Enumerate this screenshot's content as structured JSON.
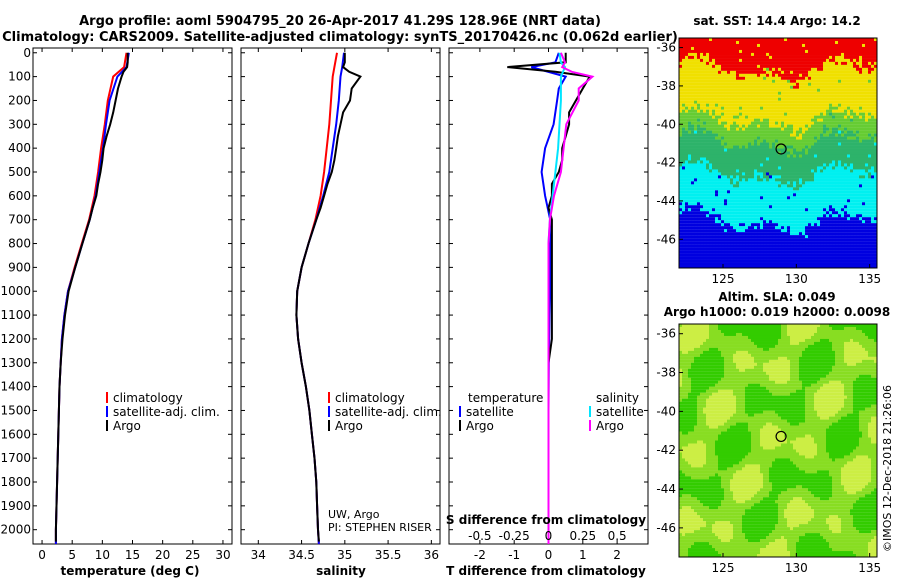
{
  "title_line1": "Argo profile: aoml 5904795_20 26-Apr-2017 41.29S 128.96E (NRT data)",
  "title_line2": "Climatology: CARS2009. Satellite-adjusted climatology: synTS_20170426.nc (0.062d earlier)",
  "colors": {
    "climatology": "#ff0000",
    "satellite": "#0000ff",
    "argo": "#000000",
    "sat_salinity": "#00e5ff",
    "argo_salinity": "#ff00ff"
  },
  "depth_axis": {
    "ticks": [
      0,
      100,
      200,
      300,
      400,
      500,
      600,
      700,
      800,
      900,
      1000,
      1100,
      1200,
      1300,
      1400,
      1500,
      1600,
      1700,
      1800,
      1900,
      2000
    ],
    "range": [
      -20,
      2060
    ]
  },
  "credit": {
    "line1": "UW, Argo",
    "line2": "PI: STEPHEN RISER"
  },
  "watermark": "©IMOS 12-Dec-2018 21:26:06",
  "chart_data": [
    {
      "type": "line",
      "name": "temperature",
      "xlabel": "temperature (deg C)",
      "xlim": [
        -1.5,
        31.5
      ],
      "xticks": [
        0,
        5,
        10,
        15,
        20,
        25,
        30
      ],
      "legend": {
        "placement": "lower-center",
        "entries": [
          "climatology",
          "satellite-adj. clim.",
          "Argo"
        ]
      },
      "series": [
        {
          "name": "climatology",
          "color": "#ff0000",
          "depth": [
            0,
            60,
            100,
            200,
            300,
            400,
            500,
            600,
            700,
            800,
            900,
            1000,
            1100,
            1200,
            1300,
            1400,
            1500,
            1600,
            1700,
            1800,
            1900,
            2000,
            2060
          ],
          "values": [
            14.0,
            13.6,
            11.8,
            10.9,
            10.4,
            9.8,
            9.3,
            8.7,
            7.8,
            6.6,
            5.4,
            4.3,
            3.7,
            3.3,
            3.1,
            2.9,
            2.8,
            2.7,
            2.6,
            2.5,
            2.4,
            2.3,
            2.3
          ]
        },
        {
          "name": "satellite-adj. clim.",
          "color": "#0000ff",
          "depth": [
            0,
            60,
            100,
            200,
            300,
            400,
            500,
            600,
            700,
            800,
            900,
            1000,
            1100,
            1200,
            1300,
            1400,
            1500,
            1600,
            1700,
            1800,
            1900,
            2000,
            2060
          ],
          "values": [
            14.4,
            14.0,
            12.5,
            11.2,
            10.6,
            10.1,
            9.5,
            8.9,
            7.9,
            6.7,
            5.5,
            4.3,
            3.7,
            3.3,
            3.1,
            2.9,
            2.8,
            2.7,
            2.6,
            2.5,
            2.4,
            2.3,
            2.3
          ]
        },
        {
          "name": "Argo",
          "color": "#000000",
          "depth": [
            0,
            40,
            60,
            80,
            100,
            150,
            200,
            250,
            300,
            350,
            400,
            450,
            500,
            550,
            600,
            650,
            700,
            800,
            900,
            1000,
            1100,
            1200,
            1300,
            1400,
            1500,
            1600,
            1700,
            1800,
            1900,
            2000,
            2050
          ],
          "values": [
            14.2,
            14.2,
            14.1,
            13.5,
            13.2,
            12.6,
            12.2,
            11.8,
            11.3,
            10.7,
            10.2,
            10.0,
            9.7,
            9.3,
            9.0,
            8.4,
            7.9,
            6.7,
            5.5,
            4.4,
            3.8,
            3.4,
            3.1,
            2.9,
            2.8,
            2.7,
            2.6,
            2.5,
            2.4,
            2.3,
            2.3
          ]
        }
      ]
    },
    {
      "type": "line",
      "name": "salinity",
      "xlabel": "salinity",
      "xlim": [
        33.8,
        36.1
      ],
      "xticks": [
        34,
        34.5,
        35,
        35.5,
        36
      ],
      "xticklabels": [
        "34",
        "34.5",
        "35",
        "35.5",
        "36"
      ],
      "legend": {
        "placement": "lower-center",
        "entries": [
          "climatology",
          "satellite-adj. clim.",
          "Argo"
        ]
      },
      "series": [
        {
          "name": "climatology",
          "color": "#ff0000",
          "depth": [
            0,
            60,
            100,
            200,
            300,
            400,
            500,
            600,
            700,
            800,
            900,
            1000,
            1100,
            1200,
            1300,
            1400,
            1500,
            1600,
            1700,
            1800,
            1900,
            2000,
            2060
          ],
          "values": [
            34.91,
            34.88,
            34.86,
            34.84,
            34.82,
            34.79,
            34.76,
            34.72,
            34.66,
            34.58,
            34.5,
            34.45,
            34.44,
            34.46,
            34.5,
            34.55,
            34.59,
            34.62,
            34.65,
            34.67,
            34.68,
            34.69,
            34.7
          ]
        },
        {
          "name": "satellite-adj. clim.",
          "color": "#0000ff",
          "depth": [
            0,
            60,
            100,
            200,
            300,
            400,
            500,
            600,
            700,
            800,
            900,
            1000,
            1100,
            1200,
            1300,
            1400,
            1500,
            1600,
            1700,
            1800,
            1900,
            2000,
            2060
          ],
          "values": [
            34.99,
            34.97,
            34.95,
            34.93,
            34.9,
            34.86,
            34.82,
            34.75,
            34.67,
            34.58,
            34.5,
            34.45,
            34.44,
            34.46,
            34.5,
            34.55,
            34.59,
            34.62,
            34.65,
            34.67,
            34.68,
            34.69,
            34.7
          ]
        },
        {
          "name": "Argo",
          "color": "#000000",
          "depth": [
            0,
            40,
            60,
            80,
            100,
            150,
            200,
            250,
            300,
            350,
            400,
            450,
            500,
            550,
            600,
            650,
            700,
            800,
            900,
            1000,
            1100,
            1200,
            1300,
            1400,
            1500,
            1600,
            1700,
            1800,
            1900,
            2000,
            2050
          ],
          "values": [
            35.0,
            35.0,
            34.98,
            35.05,
            35.18,
            35.08,
            35.06,
            34.98,
            34.95,
            34.92,
            34.9,
            34.88,
            34.85,
            34.8,
            34.76,
            34.72,
            34.67,
            34.58,
            34.5,
            34.45,
            34.44,
            34.46,
            34.5,
            34.55,
            34.59,
            34.62,
            34.65,
            34.67,
            34.68,
            34.69,
            34.7
          ]
        }
      ]
    },
    {
      "type": "line",
      "name": "difference from climatology",
      "xlabel": "T difference from climatology",
      "xlabel_top": "S difference from climatology",
      "xlim": [
        -2.9,
        2.9
      ],
      "xticks": [
        -2,
        -1,
        0,
        1,
        2
      ],
      "xticks_s": [
        -0.5,
        -0.25,
        0,
        0.25,
        0.5
      ],
      "xticklabels_s": [
        "-0.5",
        "-0.25",
        "0",
        "0.25",
        "0.5"
      ],
      "legend": {
        "placement": "lower-center",
        "left_title": "temperature",
        "right_title": "salinity",
        "entries": [
          "satellite",
          "Argo",
          "satellite",
          "Argo"
        ]
      },
      "series": [
        {
          "name": "satellite",
          "group": "temperature",
          "color": "#0000ff",
          "depth": [
            0,
            40,
            60,
            100,
            150,
            200,
            300,
            400,
            500,
            600,
            700,
            800,
            900,
            1000,
            1100,
            1200,
            1300,
            1500,
            1800,
            2060
          ],
          "values": [
            0.3,
            0.2,
            -0.5,
            0.5,
            0.3,
            0.25,
            0.15,
            -0.1,
            -0.2,
            -0.1,
            0.05,
            0.05,
            0.05,
            0.05,
            0.03,
            0.02,
            0.01,
            0.0,
            0.0,
            0.0
          ]
        },
        {
          "name": "Argo",
          "group": "temperature",
          "color": "#000000",
          "depth": [
            0,
            40,
            60,
            80,
            100,
            150,
            200,
            250,
            300,
            350,
            400,
            450,
            500,
            550,
            600,
            650,
            700,
            800,
            900,
            1000,
            1100,
            1200,
            1300,
            1500,
            1800,
            2050
          ],
          "values": [
            0.5,
            0.5,
            -1.2,
            0.2,
            1.2,
            1.0,
            0.8,
            0.6,
            0.6,
            0.5,
            0.4,
            0.4,
            0.3,
            0.1,
            0.1,
            0.0,
            0.1,
            0.1,
            0.1,
            0.1,
            0.1,
            0.1,
            0.0,
            0.0,
            0.0,
            0.0
          ]
        },
        {
          "name": "satellite",
          "group": "salinity",
          "color": "#00e5ff",
          "depth": [
            0,
            40,
            60,
            100,
            200,
            300,
            400,
            500,
            600,
            700,
            800,
            900,
            1000,
            1100,
            1200,
            1500,
            1800,
            2060
          ],
          "values": [
            0.08,
            0.09,
            0.12,
            0.09,
            0.09,
            0.08,
            0.07,
            0.05,
            0.03,
            0.01,
            0.0,
            0.0,
            0.0,
            0.0,
            0.0,
            0.0,
            0.0,
            0.0
          ]
        },
        {
          "name": "Argo",
          "group": "salinity",
          "color": "#ff00ff",
          "depth": [
            0,
            40,
            60,
            80,
            100,
            150,
            200,
            300,
            400,
            500,
            600,
            700,
            800,
            900,
            1000,
            1100,
            1200,
            1500,
            1800,
            2060
          ],
          "values": [
            0.09,
            0.12,
            0.1,
            0.17,
            0.32,
            0.22,
            0.22,
            0.13,
            0.11,
            0.09,
            0.04,
            0.01,
            0.0,
            0.0,
            0.0,
            0.0,
            0.0,
            0.0,
            0.0,
            0.0
          ]
        }
      ]
    },
    {
      "type": "heatmap",
      "name": "SST map",
      "title": "sat. SST: 14.4 Argo: 14.2",
      "xlim": [
        122,
        135.5
      ],
      "ylim": [
        -47.5,
        -35.5
      ],
      "xticks": [
        125,
        130,
        135
      ],
      "yticks": [
        -36,
        -38,
        -40,
        -42,
        -44,
        -46
      ],
      "argo_location": {
        "lon": 128.96,
        "lat": -41.29
      },
      "colors": [
        "#ee0000",
        "#f0e000",
        "#66cc33",
        "#2db36a",
        "#00f0f0",
        "#0000e0"
      ]
    },
    {
      "type": "heatmap",
      "name": "SLA map",
      "title": "Altim. SLA: 0.049",
      "subtitle": "Argo h1000: 0.019 h2000: 0.0098",
      "xlim": [
        122,
        135.5
      ],
      "ylim": [
        -47.5,
        -35.5
      ],
      "xticks": [
        125,
        130,
        135
      ],
      "yticks": [
        -36,
        -38,
        -40,
        -42,
        -44,
        -46
      ],
      "argo_location": {
        "lon": 128.96,
        "lat": -41.29
      },
      "colors": [
        "#33cc00",
        "#88dd22",
        "#ccee44"
      ]
    }
  ]
}
